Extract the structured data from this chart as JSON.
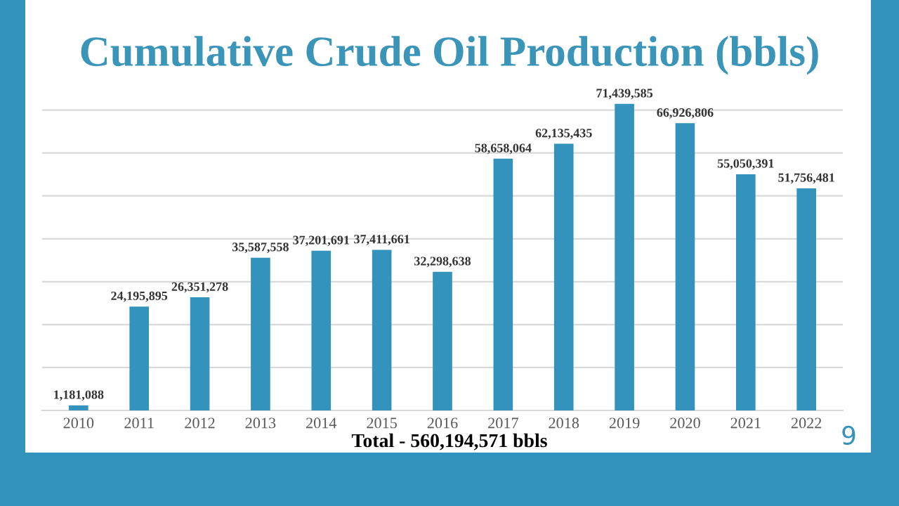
{
  "chart_data": {
    "type": "bar",
    "title": "Cumulative Crude Oil Production (bbls)",
    "categories": [
      "2010",
      "2011",
      "2012",
      "2013",
      "2014",
      "2015",
      "2016",
      "2017",
      "2018",
      "2019",
      "2020",
      "2021",
      "2022"
    ],
    "values": [
      1181088,
      24195895,
      26351278,
      35587558,
      37201691,
      37411661,
      32298638,
      58658064,
      62135435,
      71439585,
      66926806,
      55050391,
      51756481
    ],
    "value_labels": [
      "1,181,088",
      "24,195,895",
      "26,351,278",
      "35,587,558",
      "37,201,691",
      "37,411,661",
      "32,298,638",
      "58,658,064",
      "62,135,435",
      "71,439,585",
      "66,926,806",
      "55,050,391",
      "51,756,481"
    ],
    "color": "#3393bd",
    "grid": "y",
    "tick_labels": "x",
    "annotations": [
      "Total - 560,194,571 bbls",
      "9"
    ]
  }
}
